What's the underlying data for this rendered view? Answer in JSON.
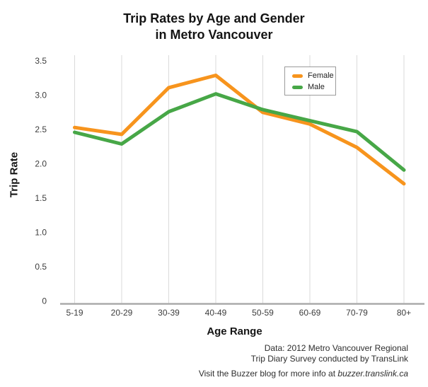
{
  "title": {
    "line1": "Trip Rates by Age and Gender",
    "line2": "in Metro Vancouver"
  },
  "axes": {
    "y_label": "Trip Rate",
    "x_label": "Age Range"
  },
  "legend": {
    "items": [
      {
        "label": "Female",
        "color": "#F7941D"
      },
      {
        "label": "Male",
        "color": "#47A747"
      }
    ]
  },
  "footer": {
    "source_line1": "Data: 2012 Metro Vancouver Regional",
    "source_line2": "Trip Diary Survey conducted by TransLink",
    "visit_text": "Visit the Buzzer blog for more info at ",
    "visit_link": "buzzer.translink.ca"
  },
  "chart_data": {
    "type": "line",
    "title": "Trip Rates by Age and Gender in Metro Vancouver",
    "xlabel": "Age Range",
    "ylabel": "Trip Rate",
    "categories": [
      "5-19",
      "20-29",
      "30-39",
      "40-49",
      "50-59",
      "60-69",
      "70-79",
      "80+"
    ],
    "series": [
      {
        "name": "Female",
        "color": "#F7941D",
        "values": [
          2.57,
          2.47,
          3.15,
          3.33,
          2.79,
          2.62,
          2.28,
          1.75
        ]
      },
      {
        "name": "Male",
        "color": "#47A747",
        "values": [
          2.5,
          2.33,
          2.8,
          3.06,
          2.83,
          2.67,
          2.51,
          1.95
        ]
      }
    ],
    "ylim": [
      0,
      3.5
    ],
    "yticks": [
      {
        "value": 3.5,
        "label": "3.5"
      },
      {
        "value": 3.0,
        "label": "3.0"
      },
      {
        "value": 2.5,
        "label": "2.5"
      },
      {
        "value": 2.0,
        "label": "2.0"
      },
      {
        "value": 1.5,
        "label": "1.5"
      },
      {
        "value": 1.0,
        "label": "1.0"
      },
      {
        "value": 0.5,
        "label": "0.5"
      },
      {
        "value": 0,
        "label": "0"
      }
    ],
    "grid": "vertical",
    "legend_position": "upper-right",
    "grid_color": "#DADADA",
    "axis_color": "#ABABAB"
  }
}
